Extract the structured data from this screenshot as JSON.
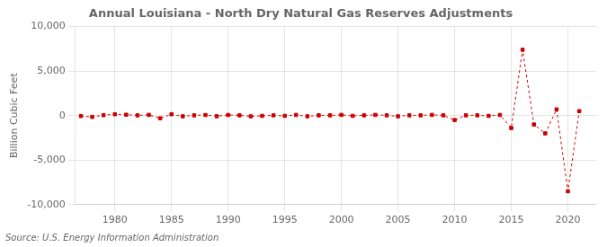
{
  "chart_data": {
    "type": "line",
    "title": "Annual Louisiana - North Dry Natural Gas Reserves Adjustments",
    "ylabel": "Billion Cubic Feet",
    "source": "Source: U.S. Energy Information Administration",
    "color": "#cc0000",
    "marker": "square",
    "line_style": "dashed",
    "grid": true,
    "x": [
      1977,
      1978,
      1979,
      1980,
      1981,
      1982,
      1983,
      1984,
      1985,
      1986,
      1987,
      1988,
      1989,
      1990,
      1991,
      1992,
      1993,
      1994,
      1995,
      1996,
      1997,
      1998,
      1999,
      2000,
      2001,
      2002,
      2003,
      2004,
      2005,
      2006,
      2007,
      2008,
      2009,
      2010,
      2011,
      2012,
      2013,
      2014,
      2015,
      2016,
      2017,
      2018,
      2019,
      2020,
      2021
    ],
    "values": [
      -50,
      -150,
      50,
      150,
      100,
      30,
      80,
      -300,
      150,
      -80,
      30,
      70,
      -70,
      70,
      30,
      -80,
      -30,
      30,
      -30,
      80,
      -80,
      30,
      30,
      80,
      -30,
      30,
      80,
      30,
      -80,
      30,
      30,
      80,
      30,
      -500,
      30,
      30,
      -30,
      70,
      -1400,
      7400,
      -1000,
      -2000,
      700,
      -8500,
      500
    ],
    "xlim": [
      1976.5,
      2022.5
    ],
    "xticks": [
      1980,
      1985,
      1990,
      1995,
      2000,
      2005,
      2010,
      2015,
      2020
    ],
    "ylim": [
      -10000,
      10000
    ],
    "yticks": [
      {
        "value": -10000,
        "label": "-10,000"
      },
      {
        "value": -5000,
        "label": "-5,000"
      },
      0,
      {
        "value": 5000,
        "label": "5,000"
      },
      {
        "value": 10000,
        "label": "10,000"
      }
    ]
  }
}
